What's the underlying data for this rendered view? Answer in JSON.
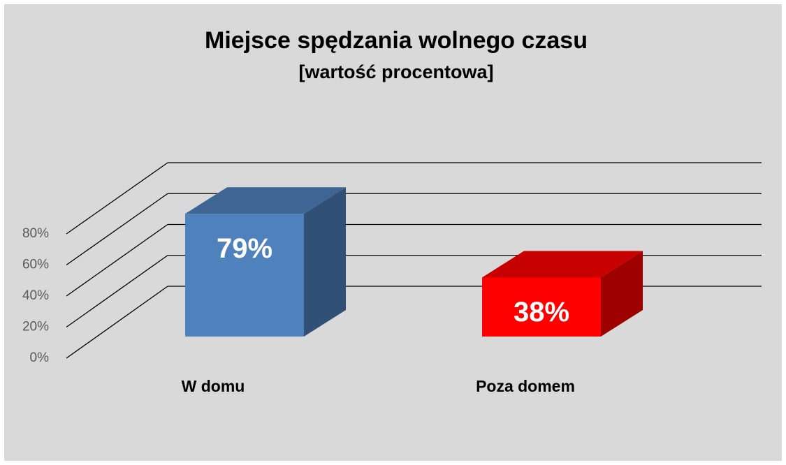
{
  "chart_data": {
    "type": "bar3d",
    "title": "Miejsce spędzania wolnego czasu",
    "subtitle": "[wartość procentowa]",
    "categories": [
      "W domu",
      "Poza domem"
    ],
    "values": [
      79,
      38
    ],
    "value_labels": [
      "79%",
      "38%"
    ],
    "colors": [
      "#4f81bd",
      "#ff0000"
    ],
    "ylim": [
      0,
      80
    ],
    "yticks": [
      {
        "value": 0,
        "label": "0%"
      },
      {
        "value": 20,
        "label": "20%"
      },
      {
        "value": 40,
        "label": "40%"
      },
      {
        "value": 60,
        "label": "60%"
      },
      {
        "value": 80,
        "label": "80%"
      }
    ],
    "grid": true
  }
}
